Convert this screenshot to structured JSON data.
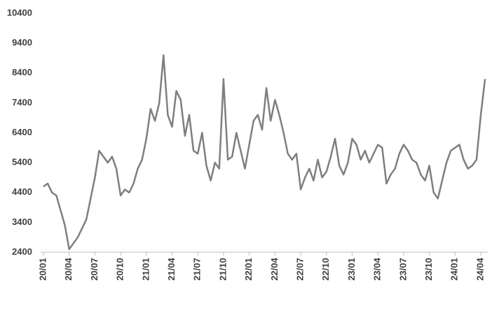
{
  "chart_data": {
    "type": "line",
    "categories": [
      "20/01",
      null,
      null,
      null,
      null,
      null,
      "20/04",
      null,
      null,
      null,
      null,
      null,
      "20/07",
      null,
      null,
      null,
      null,
      null,
      "20/10",
      null,
      null,
      null,
      null,
      null,
      "21/01",
      null,
      null,
      null,
      null,
      null,
      "21/04",
      null,
      null,
      null,
      null,
      null,
      "21/07",
      null,
      null,
      null,
      null,
      null,
      "21/10",
      null,
      null,
      null,
      null,
      null,
      "22/01",
      null,
      null,
      null,
      null,
      null,
      "22/04",
      null,
      null,
      null,
      null,
      null,
      "22/07",
      null,
      null,
      null,
      null,
      null,
      "22/10",
      null,
      null,
      null,
      null,
      null,
      "23/01",
      null,
      null,
      null,
      null,
      null,
      "23/04",
      null,
      null,
      null,
      null,
      null,
      "23/07",
      null,
      null,
      null,
      null,
      null,
      "23/10",
      null,
      null,
      null,
      null,
      null,
      "24/01",
      null,
      null,
      null,
      null,
      null,
      "24/04",
      null
    ],
    "values": [
      4600,
      4700,
      4400,
      4300,
      3800,
      3300,
      2500,
      2700,
      2900,
      3200,
      3500,
      4200,
      4900,
      5800,
      5600,
      5400,
      5600,
      5200,
      4300,
      4500,
      4400,
      4700,
      5200,
      5500,
      6200,
      7200,
      6800,
      7400,
      9000,
      7000,
      6600,
      7800,
      7500,
      6300,
      7000,
      5800,
      5700,
      6400,
      5300,
      4800,
      5400,
      5200,
      8200,
      5500,
      5600,
      6400,
      5800,
      5200,
      6000,
      6800,
      7000,
      6500,
      7900,
      6800,
      7500,
      7000,
      6400,
      5700,
      5500,
      5700,
      4500,
      4900,
      5200,
      4800,
      5500,
      4900,
      5100,
      5600,
      6200,
      5300,
      5000,
      5400,
      6200,
      6000,
      5500,
      5800,
      5400,
      5700,
      6000,
      5900,
      4700,
      5000,
      5200,
      5700,
      6000,
      5800,
      5500,
      5400,
      5000,
      4800,
      5300,
      4400,
      4200,
      4800,
      5400,
      5800,
      5900,
      6000,
      5500,
      5200,
      5300,
      5500,
      7000,
      8200
    ],
    "color": "#7f7f7f",
    "ylim": [
      2400,
      10400
    ],
    "yticks": [
      2400,
      3400,
      4400,
      5400,
      6400,
      7400,
      8400,
      9400,
      10400
    ],
    "grid": false
  }
}
